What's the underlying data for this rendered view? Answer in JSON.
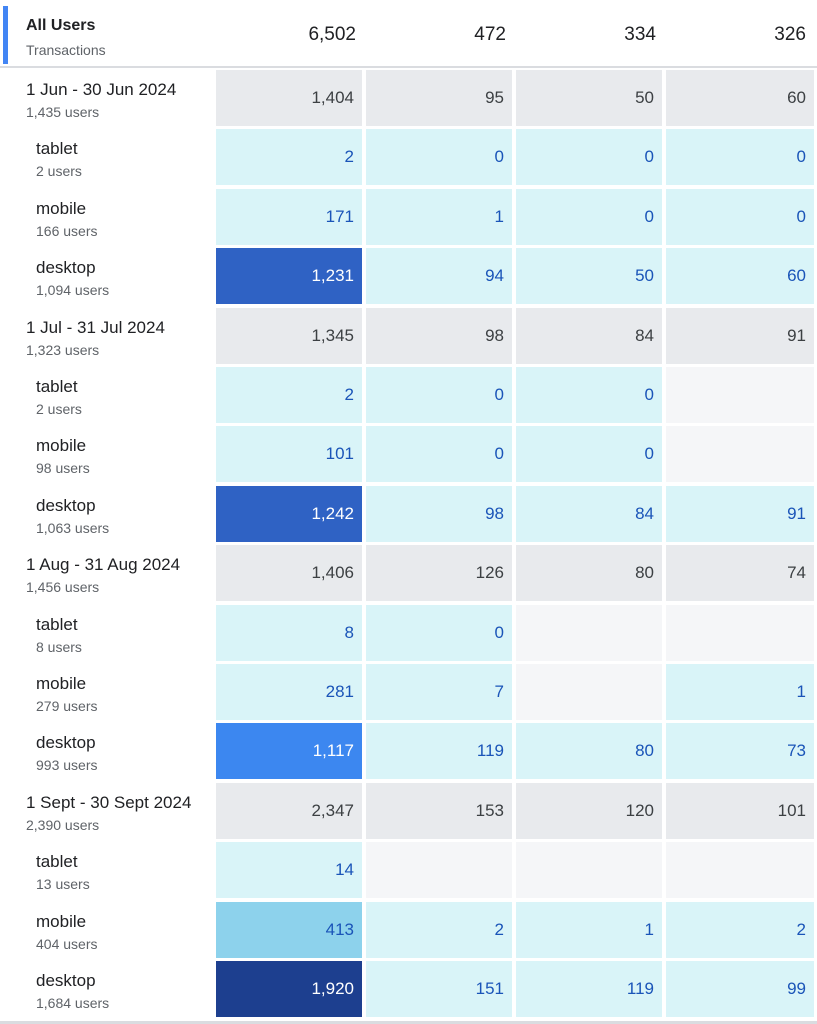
{
  "header": {
    "title": "All Users",
    "subtitle": "Transactions",
    "totals": [
      "6,502",
      "472",
      "334",
      "326"
    ]
  },
  "rows": [
    {
      "label": "1 Jun - 30 Jun 2024",
      "sub": "1,435 users",
      "values": [
        "1,404",
        "95",
        "50",
        "60"
      ]
    },
    {
      "label": "tablet",
      "sub": "2 users",
      "values": [
        "2",
        "0",
        "0",
        "0"
      ]
    },
    {
      "label": "mobile",
      "sub": "166 users",
      "values": [
        "171",
        "1",
        "0",
        "0"
      ]
    },
    {
      "label": "desktop",
      "sub": "1,094 users",
      "values": [
        "1,231",
        "94",
        "50",
        "60"
      ]
    },
    {
      "label": "1 Jul - 31 Jul 2024",
      "sub": "1,323 users",
      "values": [
        "1,345",
        "98",
        "84",
        "91"
      ]
    },
    {
      "label": "tablet",
      "sub": "2 users",
      "values": [
        "2",
        "0",
        "0",
        ""
      ]
    },
    {
      "label": "mobile",
      "sub": "98 users",
      "values": [
        "101",
        "0",
        "0",
        ""
      ]
    },
    {
      "label": "desktop",
      "sub": "1,063 users",
      "values": [
        "1,242",
        "98",
        "84",
        "91"
      ]
    },
    {
      "label": "1 Aug - 31 Aug 2024",
      "sub": "1,456 users",
      "values": [
        "1,406",
        "126",
        "80",
        "74"
      ]
    },
    {
      "label": "tablet",
      "sub": "8 users",
      "values": [
        "8",
        "0",
        "",
        ""
      ]
    },
    {
      "label": "mobile",
      "sub": "279 users",
      "values": [
        "281",
        "7",
        "",
        "1"
      ]
    },
    {
      "label": "desktop",
      "sub": "993 users",
      "values": [
        "1,117",
        "119",
        "80",
        "73"
      ]
    },
    {
      "label": "1 Sept - 30 Sept 2024",
      "sub": "2,390 users",
      "values": [
        "2,347",
        "153",
        "120",
        "101"
      ]
    },
    {
      "label": "tablet",
      "sub": "13 users",
      "values": [
        "14",
        "",
        "",
        ""
      ]
    },
    {
      "label": "mobile",
      "sub": "404 users",
      "values": [
        "413",
        "2",
        "1",
        "2"
      ]
    },
    {
      "label": "desktop",
      "sub": "1,684 users",
      "values": [
        "1,920",
        "151",
        "119",
        "99"
      ]
    }
  ]
}
